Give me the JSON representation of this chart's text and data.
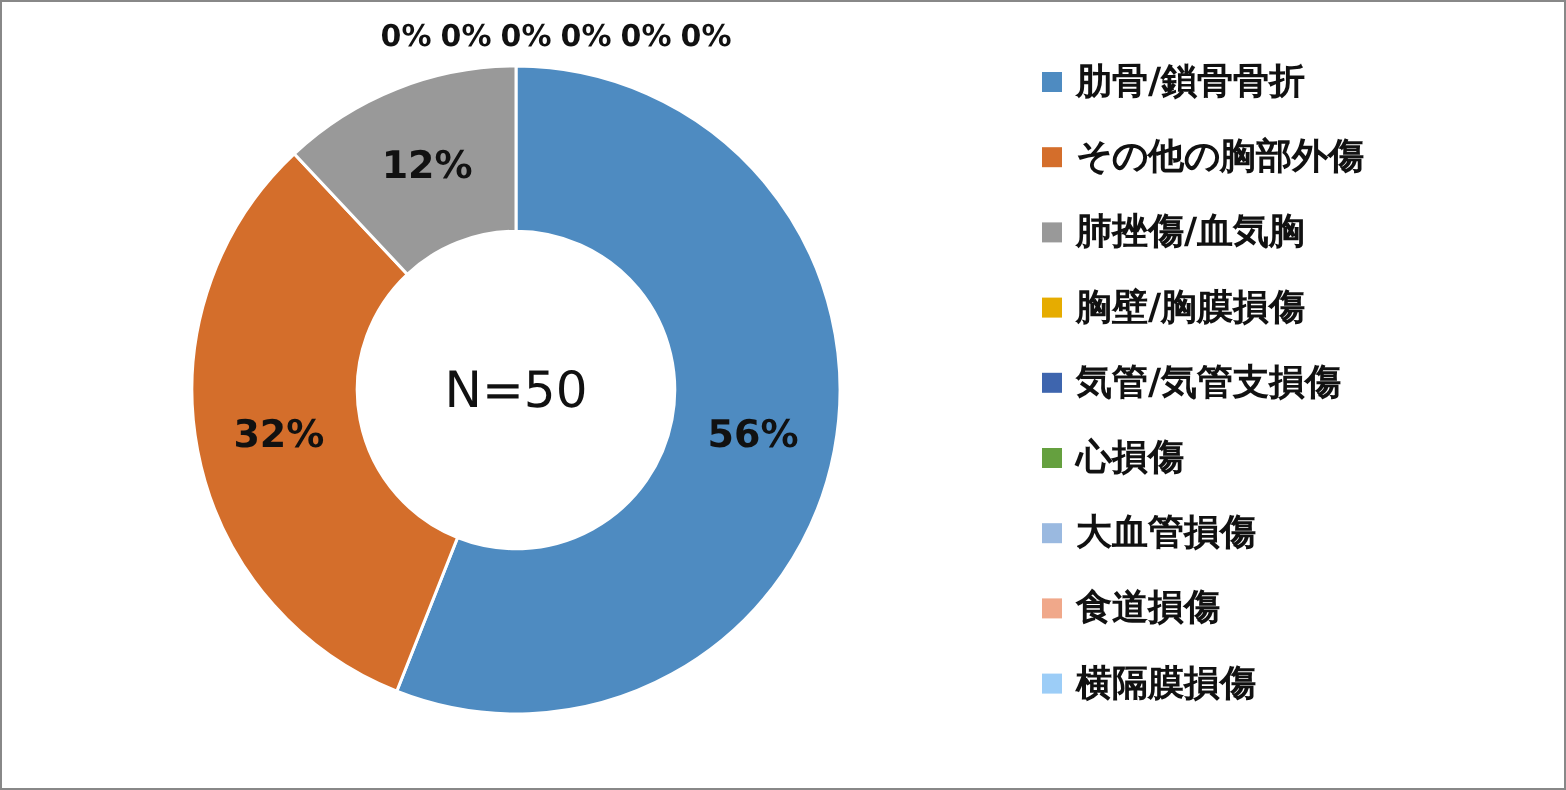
{
  "chart_data": {
    "type": "donut",
    "categories": [
      "肋骨/鎖骨骨折",
      "その他の胸部外傷",
      "肺挫傷/血気胸",
      "胸壁/胸膜損傷",
      "気管/気管支損傷",
      "心損傷",
      "大血管損傷",
      "食道損傷",
      "横隔膜損傷"
    ],
    "values": [
      56,
      32,
      12,
      0,
      0,
      0,
      0,
      0,
      0
    ],
    "colors": [
      "#4e8bc1",
      "#d46e2b",
      "#999999",
      "#e6ac00",
      "#3e65ae",
      "#65a03f",
      "#9ab9e0",
      "#f0a88a",
      "#9ccdf7"
    ],
    "value_labels": [
      "56%",
      "32%",
      "12%",
      "0%",
      "0%",
      "0%",
      "0%",
      "0%",
      "0%"
    ],
    "annotations": [
      "N=50"
    ],
    "legend": "right"
  }
}
